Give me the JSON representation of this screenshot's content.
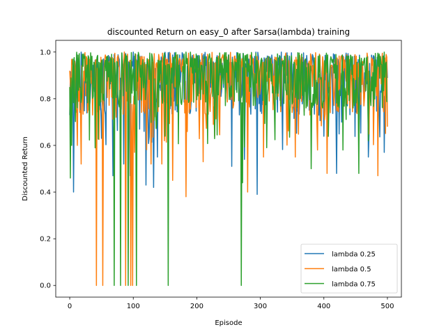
{
  "chart_data": {
    "type": "line",
    "title": "discounted Return on easy_0 after Sarsa(lambda) training",
    "xlabel": "Episode",
    "ylabel": "Discounted Return",
    "xlim": [
      -22,
      522
    ],
    "ylim": [
      -0.05,
      1.05
    ],
    "xticks": [
      0,
      100,
      200,
      300,
      400,
      500
    ],
    "yticks": [
      0.0,
      0.2,
      0.4,
      0.6,
      0.8,
      1.0
    ],
    "xtick_labels": [
      "0",
      "100",
      "200",
      "300",
      "400",
      "500"
    ],
    "ytick_labels": [
      "0.0",
      "0.2",
      "0.4",
      "0.6",
      "0.8",
      "1.0"
    ],
    "grid": false,
    "legend_position": "lower-right",
    "series_count_points": 501,
    "series": [
      {
        "name": "lambda 0.25",
        "color": "#1f77b4",
        "base": 0.86,
        "spread": 0.13,
        "seed": 11,
        "dips": [
          [
            0,
            0.73
          ],
          [
            2,
            0.65
          ],
          [
            6,
            0.4
          ],
          [
            50,
            0.63
          ],
          [
            68,
            0.47
          ],
          [
            85,
            0.52
          ],
          [
            95,
            0.47
          ],
          [
            120,
            0.43
          ],
          [
            132,
            0.42
          ],
          [
            138,
            0.55
          ],
          [
            255,
            0.51
          ],
          [
            275,
            0.54
          ],
          [
            295,
            0.39
          ],
          [
            420,
            0.48
          ],
          [
            470,
            0.55
          ],
          [
            495,
            0.57
          ]
        ]
      },
      {
        "name": "lambda 0.5",
        "color": "#ff7f0e",
        "base": 0.86,
        "spread": 0.13,
        "seed": 23,
        "dips": [
          [
            0,
            0.92
          ],
          [
            12,
            0.6
          ],
          [
            18,
            0.52
          ],
          [
            42,
            0.0
          ],
          [
            52,
            0.0
          ],
          [
            88,
            0.0
          ],
          [
            96,
            0.0
          ],
          [
            99,
            0.0
          ],
          [
            102,
            0.57
          ],
          [
            128,
            0.52
          ],
          [
            145,
            0.52
          ],
          [
            162,
            0.45
          ],
          [
            183,
            0.38
          ],
          [
            210,
            0.53
          ],
          [
            280,
            0.4
          ],
          [
            305,
            0.55
          ],
          [
            355,
            0.55
          ],
          [
            390,
            0.58
          ],
          [
            405,
            0.48
          ],
          [
            485,
            0.47
          ],
          [
            500,
            0.68
          ]
        ]
      },
      {
        "name": "lambda 0.75",
        "color": "#2ca02c",
        "base": 0.88,
        "spread": 0.12,
        "seed": 37,
        "dips": [
          [
            0,
            0.85
          ],
          [
            1,
            0.46
          ],
          [
            3,
            0.6
          ],
          [
            70,
            0.0
          ],
          [
            80,
            0.0
          ],
          [
            92,
            0.0
          ],
          [
            105,
            0.0
          ],
          [
            155,
            0.0
          ],
          [
            270,
            0.0
          ],
          [
            272,
            0.44
          ],
          [
            310,
            0.59
          ],
          [
            380,
            0.5
          ],
          [
            430,
            0.58
          ],
          [
            455,
            0.48
          ],
          [
            470,
            0.62
          ]
        ]
      }
    ]
  }
}
